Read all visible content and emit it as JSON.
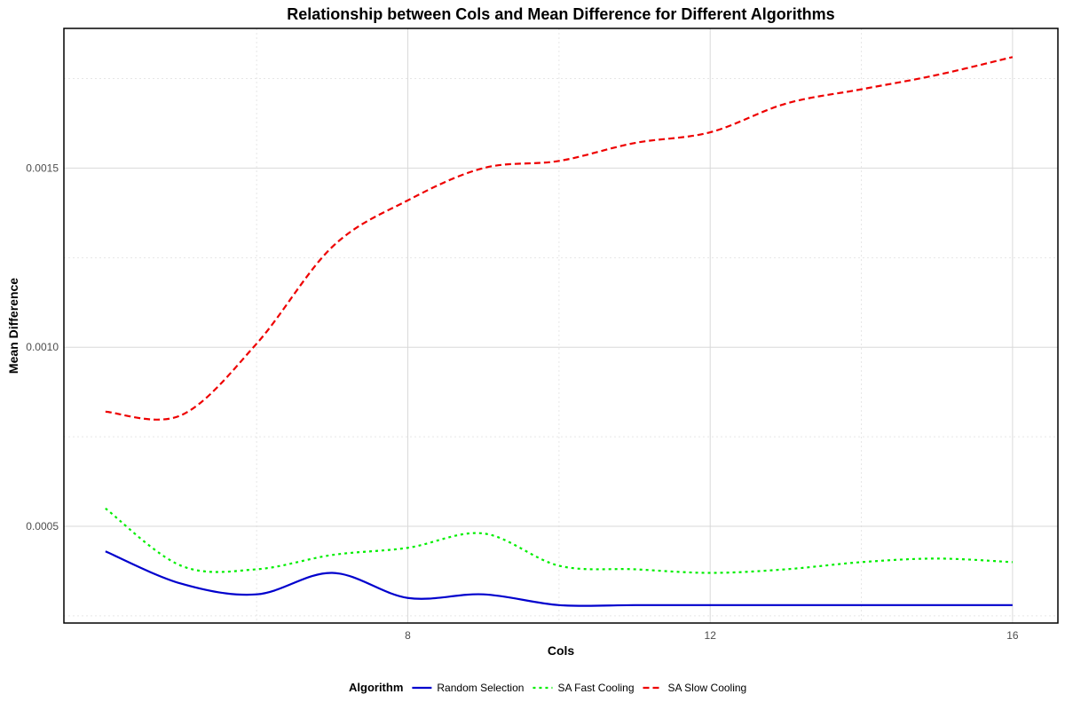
{
  "chart_data": {
    "type": "line",
    "title": "Relationship between Cols and Mean Difference for Different Algorithms",
    "xlabel": "Cols",
    "ylabel": "Mean Difference",
    "xlim": [
      3.45,
      16.6
    ],
    "ylim": [
      0.00023,
      0.00189
    ],
    "x_ticks": [
      8,
      12,
      16
    ],
    "x_tick_labels": [
      "8",
      "12",
      "16"
    ],
    "y_ticks": [
      0.0005,
      0.001,
      0.0015
    ],
    "y_tick_labels": [
      "0.0005",
      "0.0010",
      "0.0015"
    ],
    "grid": true,
    "legend": {
      "title": "Algorithm",
      "position": "bottom"
    },
    "x": [
      4,
      5,
      6,
      7,
      8,
      9,
      10,
      11,
      12,
      13,
      14,
      15,
      16
    ],
    "series": [
      {
        "name": "Random Selection",
        "color": "#0000CD",
        "dash": "solid",
        "values": [
          0.00043,
          0.00034,
          0.00031,
          0.00037,
          0.0003,
          0.00031,
          0.00028,
          0.00028,
          0.00028,
          0.00028,
          0.00028,
          0.00028,
          0.00028
        ]
      },
      {
        "name": "SA Fast Cooling",
        "color": "#00EE00",
        "dash": "dotted",
        "values": [
          0.00055,
          0.00039,
          0.00038,
          0.00042,
          0.00044,
          0.00048,
          0.00039,
          0.00038,
          0.00037,
          0.00038,
          0.0004,
          0.00041,
          0.0004
        ]
      },
      {
        "name": "SA Slow Cooling",
        "color": "#EE0000",
        "dash": "dashed",
        "values": [
          0.00082,
          0.00081,
          0.00101,
          0.00128,
          0.00141,
          0.0015,
          0.00152,
          0.00157,
          0.0016,
          0.00168,
          0.00172,
          0.00176,
          0.00181
        ]
      }
    ]
  }
}
